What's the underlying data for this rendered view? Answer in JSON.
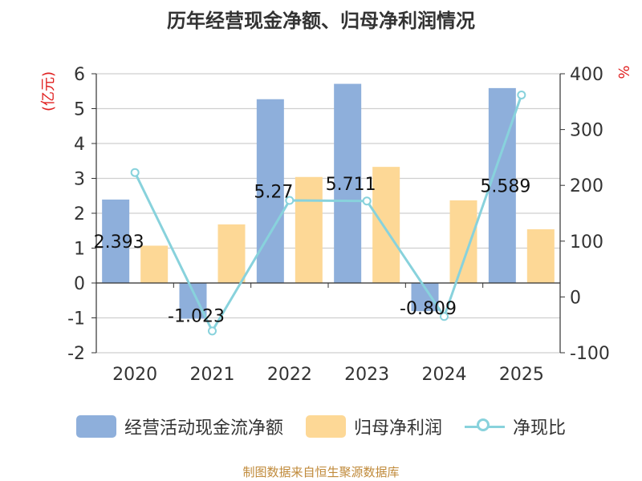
{
  "chart_data": {
    "type": "bar",
    "title": "历年经营现金净额、归母净利润情况",
    "categories": [
      "2020",
      "2021",
      "2022",
      "2023",
      "2024",
      "2025"
    ],
    "left_axis": {
      "label": "(亿元)",
      "ylim": [
        -2,
        6
      ],
      "ticks": [
        -2,
        -1,
        0,
        1,
        2,
        3,
        4,
        5,
        6
      ]
    },
    "right_axis": {
      "label": "%",
      "ylim": [
        -100,
        400
      ],
      "ticks": [
        -100,
        0,
        100,
        200,
        300,
        400
      ]
    },
    "series": [
      {
        "name": "经营活动现金流净额",
        "type": "bar",
        "axis": "left",
        "color": "#8eafdb",
        "values": [
          2.393,
          -1.023,
          5.27,
          5.711,
          -0.809,
          5.589
        ],
        "labels": [
          "2.393",
          "-1.023",
          "5.27",
          "5.711",
          "-0.809",
          "5.589"
        ]
      },
      {
        "name": "归母净利润",
        "type": "bar",
        "axis": "left",
        "color": "#fdd896",
        "values": [
          1.07,
          1.68,
          3.04,
          3.33,
          2.37,
          1.54
        ]
      },
      {
        "name": "净现比",
        "type": "line",
        "axis": "right",
        "color": "#88d2dc",
        "values": [
          223,
          -61,
          173,
          172,
          -35,
          362
        ]
      }
    ],
    "grid": true,
    "legend": "bottom"
  },
  "source": "制图数据来自恒生聚源数据库"
}
